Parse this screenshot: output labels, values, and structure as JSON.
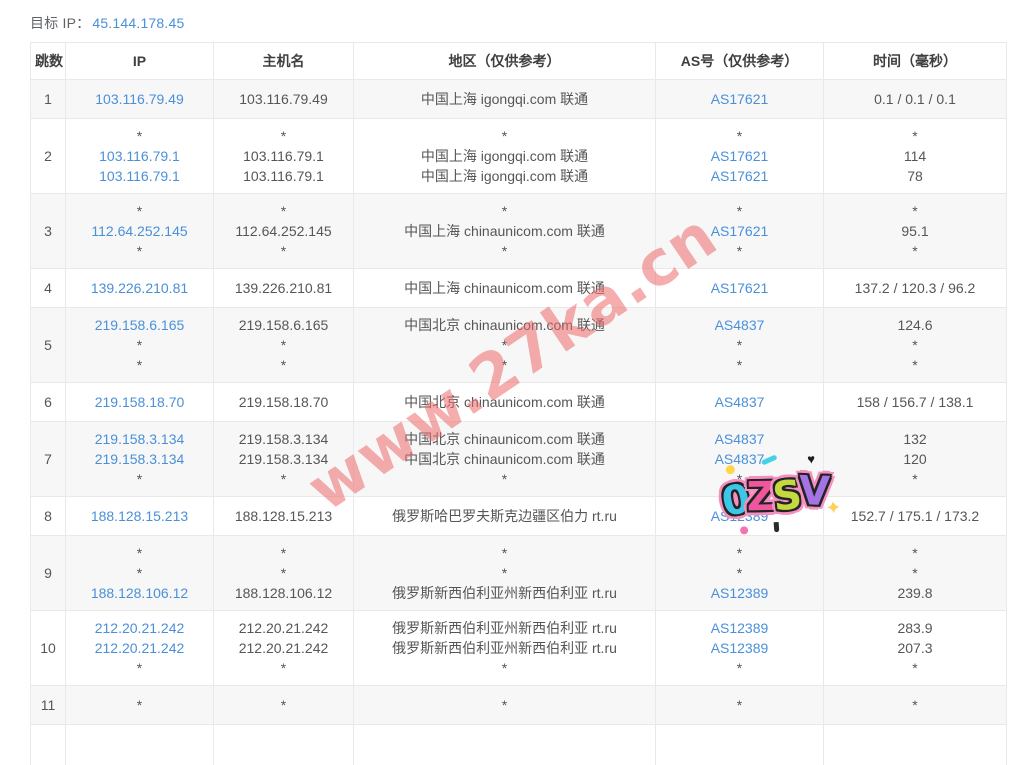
{
  "page": {
    "target_label": "目标 IP：",
    "target_ip": "45.144.178.45"
  },
  "colors": {
    "link_blue": "#4a90d9",
    "watermark_red": "rgba(236,106,106,0.55)",
    "row_shade": "#f7f7f8",
    "border": "#e9e9e9"
  },
  "watermark": {
    "text": "www.27ka.cn"
  },
  "sticker": {
    "text": "0ZSV",
    "letters": [
      {
        "char": "0",
        "color": "#3cc6e8"
      },
      {
        "char": "Z",
        "color": "#f0569e"
      },
      {
        "char": "S",
        "color": "#c3d93f"
      },
      {
        "char": "V",
        "color": "#a473e6"
      }
    ]
  },
  "table": {
    "headers": [
      "跳数",
      "IP",
      "主机名",
      "地区（仅供参考）",
      "AS号（仅供参考）",
      "时间（毫秒）"
    ],
    "rows": [
      {
        "hop": "1",
        "ip": [
          "103.116.79.49"
        ],
        "hostname": [
          "103.116.79.49"
        ],
        "region": [
          "中国上海 igongqi.com 联通"
        ],
        "asn": [
          "AS17621"
        ],
        "time": [
          "0.1 / 0.1 / 0.1"
        ]
      },
      {
        "hop": "2",
        "ip": [
          "*",
          "103.116.79.1",
          "103.116.79.1"
        ],
        "hostname": [
          "*",
          "103.116.79.1",
          "103.116.79.1"
        ],
        "region": [
          "*",
          "中国上海 igongqi.com 联通",
          "中国上海 igongqi.com 联通"
        ],
        "asn": [
          "*",
          "AS17621",
          "AS17621"
        ],
        "time": [
          "*",
          "114",
          "78"
        ]
      },
      {
        "hop": "3",
        "ip": [
          "*",
          "112.64.252.145",
          "*"
        ],
        "hostname": [
          "*",
          "112.64.252.145",
          "*"
        ],
        "region": [
          "*",
          "中国上海 chinaunicom.com 联通",
          "*"
        ],
        "asn": [
          "*",
          "AS17621",
          "*"
        ],
        "time": [
          "*",
          "95.1",
          "*"
        ]
      },
      {
        "hop": "4",
        "ip": [
          "139.226.210.81"
        ],
        "hostname": [
          "139.226.210.81"
        ],
        "region": [
          "中国上海 chinaunicom.com 联通"
        ],
        "asn": [
          "AS17621"
        ],
        "time": [
          "137.2 / 120.3 / 96.2"
        ]
      },
      {
        "hop": "5",
        "ip": [
          "219.158.6.165",
          "*",
          "*"
        ],
        "hostname": [
          "219.158.6.165",
          "*",
          "*"
        ],
        "region": [
          "中国北京 chinaunicom.com 联通",
          "*",
          "*"
        ],
        "asn": [
          "AS4837",
          "*",
          "*"
        ],
        "time": [
          "124.6",
          "*",
          "*"
        ]
      },
      {
        "hop": "6",
        "ip": [
          "219.158.18.70"
        ],
        "hostname": [
          "219.158.18.70"
        ],
        "region": [
          "中国北京 chinaunicom.com 联通"
        ],
        "asn": [
          "AS4837"
        ],
        "time": [
          "158 / 156.7 / 138.1"
        ]
      },
      {
        "hop": "7",
        "ip": [
          "219.158.3.134",
          "219.158.3.134",
          "*"
        ],
        "hostname": [
          "219.158.3.134",
          "219.158.3.134",
          "*"
        ],
        "region": [
          "中国北京 chinaunicom.com 联通",
          "中国北京 chinaunicom.com 联通",
          "*"
        ],
        "asn": [
          "AS4837",
          "AS4837",
          "*"
        ],
        "time": [
          "132",
          "120",
          "*"
        ]
      },
      {
        "hop": "8",
        "ip": [
          "188.128.15.213"
        ],
        "hostname": [
          "188.128.15.213"
        ],
        "region": [
          "俄罗斯哈巴罗夫斯克边疆区伯力 rt.ru"
        ],
        "asn": [
          "AS12389"
        ],
        "time": [
          "152.7 / 175.1 / 173.2"
        ]
      },
      {
        "hop": "9",
        "ip": [
          "*",
          "*",
          "188.128.106.12"
        ],
        "hostname": [
          "*",
          "*",
          "188.128.106.12"
        ],
        "region": [
          "*",
          "*",
          "俄罗斯新西伯利亚州新西伯利亚 rt.ru"
        ],
        "asn": [
          "*",
          "*",
          "AS12389"
        ],
        "time": [
          "*",
          "*",
          "239.8"
        ]
      },
      {
        "hop": "10",
        "ip": [
          "212.20.21.242",
          "212.20.21.242",
          "*"
        ],
        "hostname": [
          "212.20.21.242",
          "212.20.21.242",
          "*"
        ],
        "region": [
          "俄罗斯新西伯利亚州新西伯利亚 rt.ru",
          "俄罗斯新西伯利亚州新西伯利亚 rt.ru",
          "*"
        ],
        "asn": [
          "AS12389",
          "AS12389",
          "*"
        ],
        "time": [
          "283.9",
          "207.3",
          "*"
        ]
      },
      {
        "hop": "11",
        "ip": [
          "*"
        ],
        "hostname": [
          "*"
        ],
        "region": [
          "*"
        ],
        "asn": [
          "*"
        ],
        "time": [
          "*"
        ]
      },
      {
        "hop": "",
        "ip": [
          ""
        ],
        "hostname": [
          ""
        ],
        "region": [
          ""
        ],
        "asn": [
          ""
        ],
        "time": [
          ""
        ],
        "partial": true
      }
    ]
  }
}
